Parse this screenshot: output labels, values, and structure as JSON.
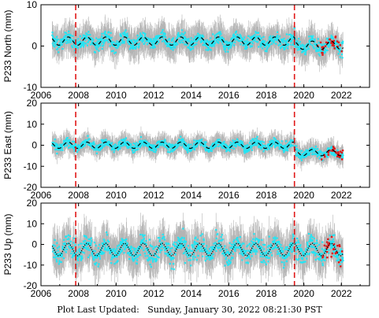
{
  "footer": "Plot Last Updated:   Sunday, January 30, 2022 08:21:30 PST",
  "colors": {
    "observations": "#22e5f4",
    "error_bars": "#b4b4b4",
    "model": "#000000",
    "outliers": "#e01818",
    "events": "#e01818"
  },
  "chart_data": [
    {
      "type": "scatter",
      "ylabel": "P233 North (mm)",
      "xlim": [
        2006,
        2023.5
      ],
      "ylim": [
        -10,
        10
      ],
      "x_ticks": [
        2006,
        2008,
        2010,
        2012,
        2014,
        2016,
        2018,
        2020,
        2022
      ],
      "y_ticks": [
        -10,
        0,
        10
      ],
      "event_lines": [
        2007.85,
        2019.5
      ],
      "data_start": 2006.6,
      "data_end": 2022.1,
      "model": {
        "offsets": [
          [
            2006.6,
            1.2
          ],
          [
            2019.5,
            0.2
          ]
        ],
        "annual_amplitude": 1.0,
        "style": "dashed"
      },
      "scatter_spread": 1.5,
      "error_bar": 3.5
    },
    {
      "type": "scatter",
      "ylabel": "P233 East (mm)",
      "xlim": [
        2006,
        2023.5
      ],
      "ylim": [
        -20,
        20
      ],
      "x_ticks": [
        2006,
        2008,
        2010,
        2012,
        2014,
        2016,
        2018,
        2020,
        2022
      ],
      "y_ticks": [
        -20,
        -10,
        0,
        10,
        20
      ],
      "event_lines": [
        2007.85,
        2019.5
      ],
      "data_start": 2006.6,
      "data_end": 2022.1,
      "model": {
        "offsets": [
          [
            2006.6,
            0.0
          ],
          [
            2019.5,
            -3.5
          ]
        ],
        "annual_amplitude": 1.5,
        "style": "dashed"
      },
      "scatter_spread": 2.0,
      "error_bar": 4.5
    },
    {
      "type": "scatter",
      "ylabel": "P233 Up (mm)",
      "xlim": [
        2006,
        2023.5
      ],
      "ylim": [
        -20,
        20
      ],
      "x_ticks": [
        2006,
        2008,
        2010,
        2012,
        2014,
        2016,
        2018,
        2020,
        2022
      ],
      "x_tick_labels": [
        "2006",
        "2008",
        "2010",
        "2012",
        "2014",
        "2016",
        "2018",
        "2020",
        "2022"
      ],
      "y_ticks": [
        -20,
        -10,
        0,
        10,
        20
      ],
      "event_lines": [
        2007.85,
        2019.5
      ],
      "data_start": 2006.6,
      "data_end": 2022.1,
      "model": {
        "offsets": [
          [
            2006.6,
            -2.5
          ],
          [
            2019.5,
            -2.5
          ]
        ],
        "annual_amplitude": 3.0,
        "style": "dotted"
      },
      "scatter_spread": 5.0,
      "error_bar": 9.0
    }
  ]
}
